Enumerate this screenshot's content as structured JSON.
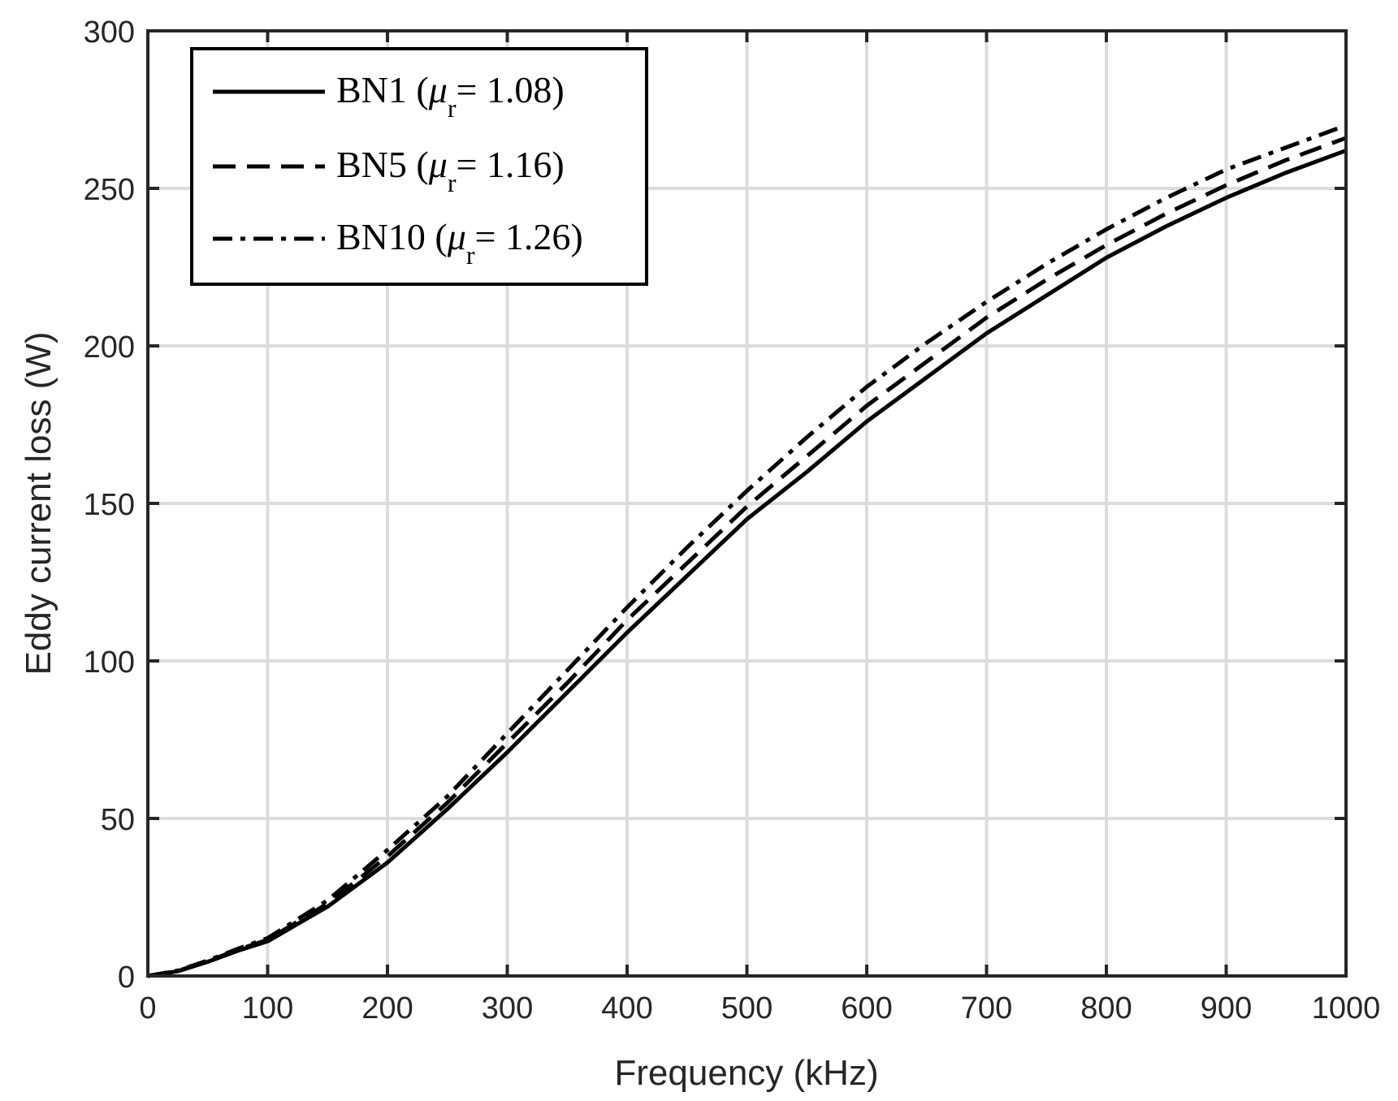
{
  "chart_data": {
    "type": "line",
    "title": "",
    "xlabel": "Frequency (kHz)",
    "ylabel": "Eddy current loss (W)",
    "xlim": [
      0,
      1000
    ],
    "ylim": [
      0,
      300
    ],
    "xticks": [
      0,
      100,
      200,
      300,
      400,
      500,
      600,
      700,
      800,
      900,
      1000
    ],
    "yticks": [
      0,
      50,
      100,
      150,
      200,
      250,
      300
    ],
    "xtick_labels": [
      "0",
      "100",
      "200",
      "300",
      "400",
      "500",
      "600",
      "700",
      "800",
      "900",
      "1000"
    ],
    "ytick_labels": [
      "0",
      "50",
      "100",
      "150",
      "200",
      "250",
      "300"
    ],
    "grid": true,
    "legend_position": "top-left",
    "x": [
      0,
      25,
      50,
      75,
      100,
      150,
      200,
      250,
      300,
      350,
      400,
      450,
      500,
      550,
      600,
      650,
      700,
      750,
      800,
      850,
      900,
      950,
      1000
    ],
    "series": [
      {
        "name": "BN1",
        "mu_symbol": "μ",
        "mu_sub": "r",
        "mu_value": "= 1.08)",
        "prefix": "BN1 (",
        "style": "solid",
        "values": [
          0,
          1.5,
          4.5,
          8,
          11,
          22,
          36,
          53,
          71,
          90,
          109,
          127,
          145,
          160,
          176,
          190,
          204,
          216,
          228,
          238,
          247,
          255,
          262
        ]
      },
      {
        "name": "BN5",
        "mu_symbol": "μ",
        "mu_sub": "r",
        "mu_value": "= 1.16)",
        "prefix": "BN5 (",
        "style": "dashed",
        "values": [
          0,
          1.6,
          4.7,
          8.3,
          11.5,
          23,
          38,
          55,
          74,
          93,
          113,
          131,
          149,
          165,
          181,
          195,
          209,
          221,
          232,
          242,
          251,
          259,
          266
        ]
      },
      {
        "name": "BN10",
        "mu_symbol": "μ",
        "mu_sub": "r",
        "mu_value": "= 1.26)",
        "prefix": "BN10 (",
        "style": "dashdot",
        "values": [
          0,
          1.7,
          4.9,
          8.6,
          12,
          24,
          40,
          57,
          77,
          97,
          117,
          136,
          154,
          171,
          187,
          201,
          214,
          226,
          237,
          247,
          256,
          263,
          270
        ]
      }
    ]
  }
}
